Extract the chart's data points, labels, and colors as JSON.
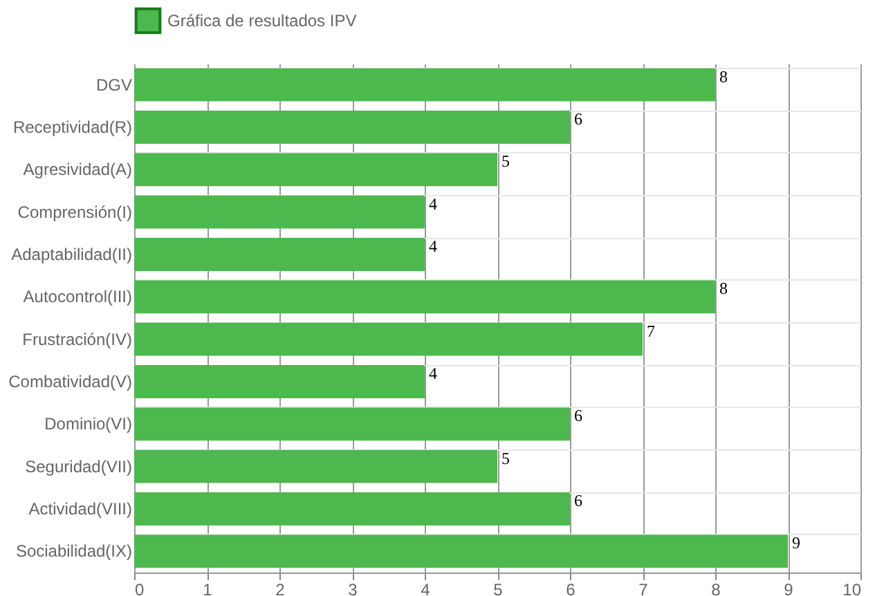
{
  "chart_data": {
    "type": "bar",
    "orientation": "horizontal",
    "categories": [
      "DGV",
      "Receptividad(R)",
      "Agresividad(A)",
      "Comprensión(I)",
      "Adaptabilidad(II)",
      "Autocontrol(III)",
      "Frustración(IV)",
      "Combatividad(V)",
      "Dominio(VI)",
      "Seguridad(VII)",
      "Actividad(VIII)",
      "Sociabilidad(IX)"
    ],
    "series": [
      {
        "name": "Gráfica de resultados IPV",
        "color": "#4db84d",
        "values": [
          8,
          6,
          5,
          4,
          4,
          8,
          7,
          4,
          6,
          5,
          6,
          9
        ]
      }
    ],
    "xlim": [
      0,
      10
    ],
    "xticks": [
      0,
      1,
      2,
      3,
      4,
      5,
      6,
      7,
      8,
      9,
      10
    ],
    "grid": true,
    "legend": "top",
    "data_labels": true
  }
}
